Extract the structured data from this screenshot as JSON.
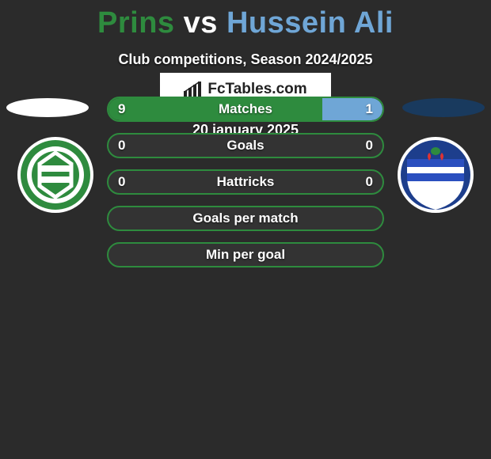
{
  "title": {
    "text": "Prins vs Hussein Ali",
    "p1_color": "#2e8b3e",
    "vs_color": "#ffffff",
    "p2_color": "#6fa6d6"
  },
  "subtitle": "Club competitions, Season 2024/2025",
  "colors": {
    "background": "#2b2b2b",
    "row_bg": "#333333",
    "p1_accent": "#2e8b3e",
    "p2_accent": "#6fa6d6",
    "text": "#ffffff"
  },
  "player1": {
    "oval_color": "#ffffff",
    "club": "groningen"
  },
  "player2": {
    "oval_color": "#193a5e",
    "club": "heerenveen"
  },
  "rows": [
    {
      "label": "Matches",
      "left": "9",
      "right": "1",
      "left_w": 78,
      "right_w": 22,
      "fill_left": "#2e8b3e",
      "fill_right": "#6fa6d6",
      "border": "#2e8b3e"
    },
    {
      "label": "Goals",
      "left": "0",
      "right": "0",
      "left_w": 0,
      "right_w": 0,
      "fill_left": "#2e8b3e",
      "fill_right": "#6fa6d6",
      "border": "#2e8b3e"
    },
    {
      "label": "Hattricks",
      "left": "0",
      "right": "0",
      "left_w": 0,
      "right_w": 0,
      "fill_left": "#2e8b3e",
      "fill_right": "#6fa6d6",
      "border": "#2e8b3e"
    },
    {
      "label": "Goals per match",
      "left": "",
      "right": "",
      "left_w": 0,
      "right_w": 0,
      "fill_left": "#2e8b3e",
      "fill_right": "#6fa6d6",
      "border": "#2e8b3e"
    },
    {
      "label": "Min per goal",
      "left": "",
      "right": "",
      "left_w": 0,
      "right_w": 0,
      "fill_left": "#2e8b3e",
      "fill_right": "#6fa6d6",
      "border": "#2e8b3e"
    }
  ],
  "brand": "FcTables.com",
  "date": "20 january 2025"
}
